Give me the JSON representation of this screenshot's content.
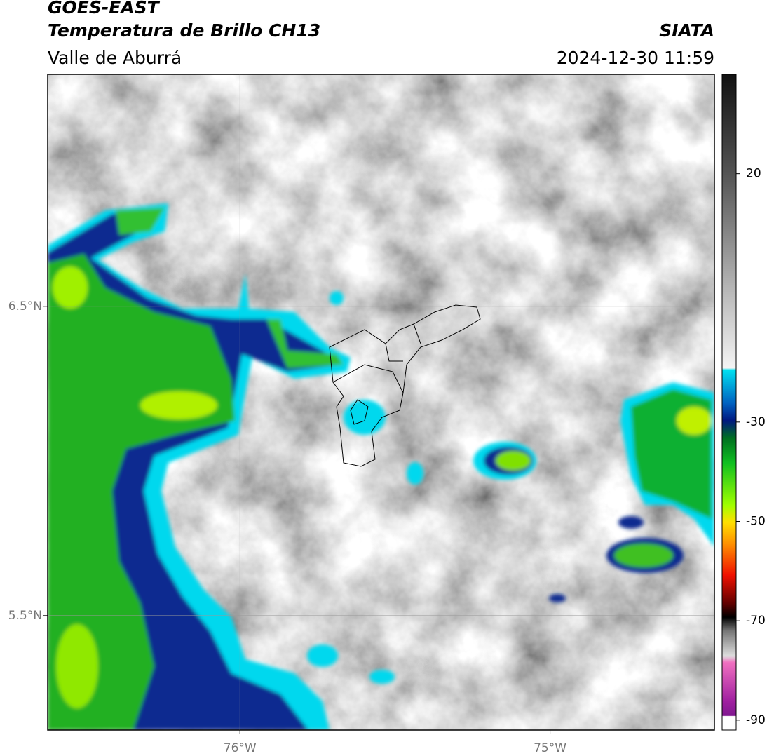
{
  "header": {
    "title": "GOES-EAST",
    "subtitle": "Temperatura de Brillo CH13",
    "region": "Valle de Aburrá",
    "source": "SIATA",
    "datetime": "2024-12-30 11:59"
  },
  "map": {
    "xlim": [
      -76.62,
      -74.47
    ],
    "ylim": [
      5.13,
      7.25
    ],
    "xticks": [
      {
        "value": -76,
        "label": "76°W"
      },
      {
        "value": -75,
        "label": "75°W"
      }
    ],
    "yticks": [
      {
        "value": 6.5,
        "label": "6.5°N"
      },
      {
        "value": 5.5,
        "label": "5.5°N"
      }
    ],
    "grid": true
  },
  "colorbar": {
    "lim": [
      -92,
      40
    ],
    "ticks": [
      20,
      -30,
      -50,
      -70,
      -90
    ]
  }
}
